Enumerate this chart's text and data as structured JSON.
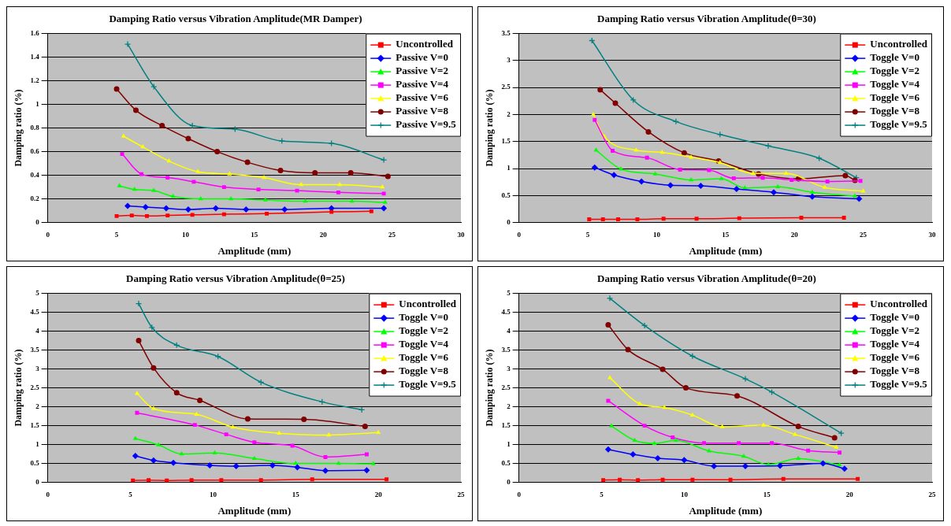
{
  "chart_data": [
    {
      "type": "line",
      "title": "Damping Ratio versus Vibration Amplitude(MR Damper)",
      "xlabel": "Amplitude (mm)",
      "ylabel": "Damping ratio (%)",
      "xlim": [
        0,
        30
      ],
      "xticks": [
        0,
        5,
        10,
        15,
        20,
        25,
        30
      ],
      "ylim": [
        0,
        1.6
      ],
      "yticks": [
        0,
        0.2,
        0.4,
        0.6,
        0.8,
        1,
        1.2,
        1.4,
        1.6
      ],
      "grid": "y",
      "legend": "top right",
      "series": [
        {
          "name": "Uncontrolled",
          "color": "#ff0000",
          "marker": "square",
          "x": [
            5,
            6.1,
            7.2,
            8.7,
            10.5,
            12.8,
            15.9,
            20.6,
            23.5
          ],
          "values": [
            0.055,
            0.06,
            0.055,
            0.06,
            0.065,
            0.07,
            0.075,
            0.09,
            0.095
          ]
        },
        {
          "name": "Passive V=0",
          "color": "#0000ff",
          "marker": "diamond",
          "x": [
            5.8,
            7.1,
            8.6,
            10.2,
            12.2,
            14.4,
            17.2,
            20.6,
            24.4
          ],
          "values": [
            0.14,
            0.13,
            0.12,
            0.11,
            0.12,
            0.11,
            0.11,
            0.12,
            0.12
          ]
        },
        {
          "name": "Passive V=2",
          "color": "#00ff00",
          "marker": "triangle",
          "x": [
            5.2,
            6.3,
            7.7,
            9.1,
            11.1,
            13.3,
            15.8,
            18.7,
            22.1,
            24.5
          ],
          "values": [
            0.31,
            0.28,
            0.27,
            0.22,
            0.2,
            0.2,
            0.19,
            0.18,
            0.18,
            0.17
          ]
        },
        {
          "name": "Passive V=4",
          "color": "#ff00ff",
          "marker": "square",
          "x": [
            5.4,
            6.8,
            8.7,
            10.6,
            12.8,
            15.3,
            18.1,
            21.1,
            24.4
          ],
          "values": [
            0.58,
            0.41,
            0.38,
            0.345,
            0.3,
            0.28,
            0.27,
            0.255,
            0.245
          ]
        },
        {
          "name": "Passive V=6",
          "color": "#ffff00",
          "marker": "triangle",
          "x": [
            5.5,
            6.9,
            8.8,
            10.9,
            13.2,
            15.7,
            18.4,
            21.2,
            24.3
          ],
          "values": [
            0.73,
            0.64,
            0.52,
            0.43,
            0.41,
            0.38,
            0.32,
            0.32,
            0.3
          ]
        },
        {
          "name": "Passive V=8",
          "color": "#800000",
          "marker": "circle",
          "x": [
            5,
            6.4,
            8.3,
            10.2,
            12.3,
            14.5,
            16.9,
            19.4,
            22,
            24.7
          ],
          "values": [
            1.13,
            0.95,
            0.82,
            0.71,
            0.6,
            0.51,
            0.44,
            0.42,
            0.42,
            0.39
          ]
        },
        {
          "name": "Passive V=9.5",
          "color": "#008080",
          "marker": "cross",
          "x": [
            5.8,
            7.7,
            10.5,
            13.6,
            17,
            20.6,
            24.4
          ],
          "values": [
            1.51,
            1.15,
            0.82,
            0.79,
            0.69,
            0.67,
            0.53
          ]
        }
      ]
    },
    {
      "type": "line",
      "title": "Damping Ratio versus Vibration Amplitude(θ=30)",
      "xlabel": "Amplitude (mm)",
      "ylabel": "Damping ratio (%)",
      "xlim": [
        0,
        30
      ],
      "xticks": [
        0,
        5,
        10,
        15,
        20,
        25,
        30
      ],
      "ylim": [
        0,
        3.5
      ],
      "yticks": [
        0,
        0.5,
        1,
        1.5,
        2,
        2.5,
        3,
        3.5
      ],
      "grid": "y",
      "legend": "top right",
      "series": [
        {
          "name": "Uncontrolled",
          "color": "#ff0000",
          "marker": "square",
          "x": [
            5.1,
            6.1,
            7.2,
            8.6,
            10.5,
            12.9,
            16,
            20.5,
            23.6
          ],
          "values": [
            0.06,
            0.06,
            0.06,
            0.06,
            0.07,
            0.07,
            0.08,
            0.09,
            0.09
          ]
        },
        {
          "name": "Toggle V=0",
          "color": "#0000ff",
          "marker": "diamond",
          "x": [
            5.5,
            6.9,
            8.9,
            11,
            13.2,
            15.8,
            18.5,
            21.3,
            24.7
          ],
          "values": [
            1.02,
            0.88,
            0.76,
            0.69,
            0.68,
            0.62,
            0.56,
            0.48,
            0.44
          ]
        },
        {
          "name": "Toggle V=2",
          "color": "#00ff00",
          "marker": "triangle",
          "x": [
            5.6,
            7.4,
            9.9,
            12.5,
            14.7,
            16.4,
            18.8,
            21.3,
            24.4
          ],
          "values": [
            1.34,
            0.99,
            0.9,
            0.79,
            0.81,
            0.64,
            0.66,
            0.56,
            0.49
          ]
        },
        {
          "name": "Toggle V=4",
          "color": "#ff00ff",
          "marker": "square",
          "x": [
            5.5,
            6.8,
            9.3,
            11.7,
            13.8,
            15.6,
            17.7,
            19.8,
            22.4,
            24.8
          ],
          "values": [
            1.9,
            1.33,
            1.2,
            0.98,
            0.97,
            0.82,
            0.83,
            0.79,
            0.76,
            0.77
          ]
        },
        {
          "name": "Toggle V=6",
          "color": "#ffff00",
          "marker": "triangle",
          "x": [
            5.4,
            6.2,
            8.5,
            10.4,
            12.5,
            14.6,
            17,
            19.4,
            22.2,
            25
          ],
          "values": [
            2,
            1.59,
            1.34,
            1.3,
            1.21,
            1.11,
            0.91,
            0.91,
            0.65,
            0.58
          ]
        },
        {
          "name": "Toggle V=8",
          "color": "#800000",
          "marker": "circle",
          "x": [
            5.9,
            7,
            9.4,
            12,
            14.5,
            17.4,
            20.3,
            23.7,
            24.4
          ],
          "values": [
            2.46,
            2.21,
            1.68,
            1.29,
            1.14,
            0.9,
            0.81,
            0.87,
            0.78
          ]
        },
        {
          "name": "Toggle V=9.5",
          "color": "#008080",
          "marker": "cross",
          "x": [
            5.3,
            8.3,
            11.4,
            14.6,
            18.1,
            21.8,
            24.5
          ],
          "values": [
            3.37,
            2.27,
            1.87,
            1.63,
            1.42,
            1.19,
            0.83
          ]
        }
      ]
    },
    {
      "type": "line",
      "title": "Damping Ratio versus Vibration Amplitude(θ=25)",
      "xlabel": "Amplitude (mm)",
      "ylabel": "Damping ratio (%)",
      "xlim": [
        0,
        25
      ],
      "xticks": [
        0,
        5,
        10,
        15,
        20,
        25
      ],
      "ylim": [
        0,
        5
      ],
      "yticks": [
        0,
        0.5,
        1,
        1.5,
        2,
        2.5,
        3,
        3.5,
        4,
        4.5,
        5
      ],
      "grid": "y",
      "legend": "top right",
      "series": [
        {
          "name": "Uncontrolled",
          "color": "#ff0000",
          "marker": "square",
          "x": [
            5.15,
            6.1,
            7.2,
            8.7,
            10.5,
            12.9,
            16,
            20.5
          ],
          "values": [
            0.05,
            0.06,
            0.05,
            0.06,
            0.06,
            0.06,
            0.08,
            0.08
          ]
        },
        {
          "name": "Toggle V=0",
          "color": "#0000ff",
          "marker": "diamond",
          "x": [
            5.3,
            6.4,
            7.6,
            9.8,
            11.4,
            13.6,
            15.1,
            16.8,
            19.3
          ],
          "values": [
            0.7,
            0.58,
            0.52,
            0.45,
            0.43,
            0.45,
            0.4,
            0.31,
            0.32
          ]
        },
        {
          "name": "Toggle V=2",
          "color": "#00ff00",
          "marker": "triangle",
          "x": [
            5.3,
            6.7,
            8.1,
            10.1,
            12.5,
            15,
            17.6,
            19.7
          ],
          "values": [
            1.16,
            0.99,
            0.75,
            0.78,
            0.63,
            0.5,
            0.5,
            0.49
          ]
        },
        {
          "name": "Toggle V=4",
          "color": "#ff00ff",
          "marker": "square",
          "x": [
            5.4,
            8.9,
            10.8,
            12.5,
            14.8,
            16.8,
            19.3
          ],
          "values": [
            1.84,
            1.52,
            1.27,
            1.06,
            0.97,
            0.67,
            0.74
          ]
        },
        {
          "name": "Toggle V=6",
          "color": "#ffff00",
          "marker": "triangle",
          "x": [
            5.4,
            6.4,
            9,
            11.2,
            14,
            17,
            20
          ],
          "values": [
            2.35,
            1.95,
            1.8,
            1.46,
            1.3,
            1.25,
            1.32
          ]
        },
        {
          "name": "Toggle V=8",
          "color": "#800000",
          "marker": "circle",
          "x": [
            5.5,
            6.4,
            7.8,
            9.2,
            12.1,
            15.5,
            19.2
          ],
          "values": [
            3.75,
            3.03,
            2.37,
            2.17,
            1.68,
            1.67,
            1.48
          ]
        },
        {
          "name": "Toggle V=9.5",
          "color": "#008080",
          "marker": "cross",
          "x": [
            5.5,
            6.3,
            7.8,
            10.3,
            12.9,
            16.6,
            19
          ],
          "values": [
            4.73,
            4.1,
            3.63,
            3.33,
            2.65,
            2.13,
            1.92
          ]
        }
      ]
    },
    {
      "type": "line",
      "title": "Damping Ratio versus Vibration Amplitude(θ=20)",
      "xlabel": "Amplitude (mm)",
      "ylabel": "Damping ratio (%)",
      "xlim": [
        0,
        25
      ],
      "xticks": [
        0,
        5,
        10,
        15,
        20,
        25
      ],
      "ylim": [
        0,
        5
      ],
      "yticks": [
        0,
        0.5,
        1,
        1.5,
        2,
        2.5,
        3,
        3.5,
        4,
        4.5,
        5
      ],
      "grid": "y",
      "legend": "top right",
      "series": [
        {
          "name": "Uncontrolled",
          "color": "#ff0000",
          "marker": "square",
          "x": [
            5.1,
            6.1,
            7.2,
            8.7,
            10.5,
            12.8,
            16,
            20.5
          ],
          "values": [
            0.06,
            0.07,
            0.06,
            0.07,
            0.07,
            0.07,
            0.09,
            0.09
          ]
        },
        {
          "name": "Toggle V=0",
          "color": "#0000ff",
          "marker": "diamond",
          "x": [
            5.4,
            6.9,
            8.4,
            10,
            11.8,
            13.7,
            15.8,
            18.4,
            19.7
          ],
          "values": [
            0.87,
            0.74,
            0.64,
            0.59,
            0.43,
            0.43,
            0.44,
            0.5,
            0.36
          ]
        },
        {
          "name": "Toggle V=2",
          "color": "#00ff00",
          "marker": "triangle",
          "x": [
            5.6,
            7,
            8.2,
            9.5,
            11.5,
            13.6,
            15.1,
            16.9,
            19.4
          ],
          "values": [
            1.49,
            1.11,
            1.03,
            1.11,
            0.83,
            0.69,
            0.47,
            0.63,
            0.46
          ]
        },
        {
          "name": "Toggle V=4",
          "color": "#ff00ff",
          "marker": "square",
          "x": [
            5.4,
            7.6,
            9.3,
            11.2,
            13.3,
            15.3,
            17.5,
            19.4
          ],
          "values": [
            2.16,
            1.5,
            1.19,
            1.04,
            1.04,
            1.04,
            0.84,
            0.79
          ]
        },
        {
          "name": "Toggle V=6",
          "color": "#ffff00",
          "marker": "triangle",
          "x": [
            5.5,
            7.3,
            8.8,
            10.5,
            12.3,
            14.8,
            16.7,
            19.2
          ],
          "values": [
            2.77,
            2.08,
            1.98,
            1.78,
            1.47,
            1.51,
            1.27,
            0.93
          ]
        },
        {
          "name": "Toggle V=8",
          "color": "#800000",
          "marker": "circle",
          "x": [
            5.4,
            6.6,
            8.7,
            10.1,
            13.2,
            16.9,
            19.1
          ],
          "values": [
            4.17,
            3.51,
            2.99,
            2.5,
            2.29,
            1.48,
            1.18
          ]
        },
        {
          "name": "Toggle V=9.5",
          "color": "#008080",
          "marker": "cross",
          "x": [
            5.5,
            7.6,
            10.5,
            13.7,
            15.3,
            19.5
          ],
          "values": [
            4.87,
            4.15,
            3.34,
            2.74,
            2.39,
            1.3
          ]
        }
      ]
    }
  ]
}
